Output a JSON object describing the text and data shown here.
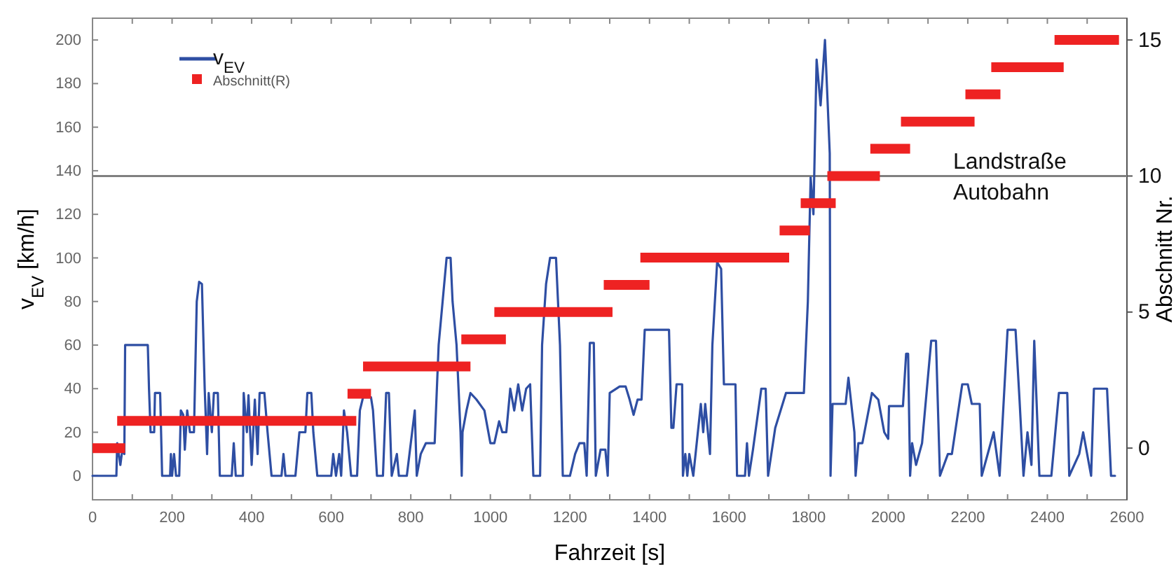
{
  "chart_data": {
    "type": "line",
    "xlabel": "Fahrzeit [s]",
    "ylabel": "v$_{EV}$ [km/h]",
    "y2label": "Abschnitt Nr.",
    "xlim": [
      0,
      2600
    ],
    "ylim": [
      -11,
      210
    ],
    "y2lim": [
      -1.9,
      15.8
    ],
    "xticks": [
      0,
      {
        "value": 100,
        "label": null
      },
      200,
      {
        "value": 300,
        "label": null
      },
      400,
      {
        "value": 500,
        "label": null
      },
      600,
      {
        "value": 700,
        "label": null
      },
      800,
      {
        "value": 900,
        "label": null
      },
      1000,
      {
        "value": 1100,
        "label": null
      },
      1200,
      {
        "value": 1300,
        "label": null
      },
      1400,
      {
        "value": 1500,
        "label": null
      },
      1600,
      {
        "value": 1700,
        "label": null
      },
      1800,
      {
        "value": 1900,
        "label": null
      },
      2000,
      {
        "value": 2100,
        "label": null
      },
      2200,
      {
        "value": 2300,
        "label": null
      },
      2400,
      {
        "value": 2500,
        "label": null
      },
      2600
    ],
    "yticks": [
      0,
      20,
      40,
      60,
      80,
      100,
      120,
      140,
      160,
      180,
      200
    ],
    "y2ticks": [
      0,
      5,
      10,
      15
    ],
    "legend": "top left",
    "grid": false,
    "ref_lines": [
      {
        "axis": "y2",
        "value": 10,
        "color": "#808080"
      }
    ],
    "annotations": [
      "Landstraße",
      "Autobahn"
    ],
    "series": [
      {
        "name": "v$_{EV}$",
        "color": "#2e4ea3",
        "axis": "y",
        "x": [
          0,
          60,
          62,
          70,
          75,
          80,
          82,
          139,
          142,
          146,
          155,
          157,
          170,
          175,
          195,
          197,
          200,
          205,
          210,
          218,
          222,
          228,
          232,
          238,
          245,
          255,
          262,
          268,
          275,
          282,
          288,
          292,
          300,
          305,
          315,
          320,
          350,
          355,
          360,
          378,
          380,
          388,
          392,
          400,
          408,
          415,
          420,
          432,
          440,
          450,
          475,
          480,
          485,
          510,
          520,
          535,
          540,
          550,
          555,
          565,
          600,
          605,
          612,
          620,
          625,
          632,
          640,
          650,
          665,
          672,
          680,
          700,
          705,
          715,
          730,
          738,
          745,
          752,
          765,
          770,
          790,
          810,
          815,
          825,
          838,
          860,
          870,
          880,
          890,
          900,
          905,
          915,
          925,
          928,
          930,
          940,
          950,
          965,
          985,
          1000,
          1010,
          1022,
          1030,
          1040,
          1050,
          1060,
          1070,
          1080,
          1090,
          1100,
          1108,
          1125,
          1130,
          1140,
          1150,
          1165,
          1175,
          1182,
          1200,
          1213,
          1224,
          1236,
          1242,
          1250,
          1260,
          1265,
          1277,
          1289,
          1295,
          1300,
          1325,
          1340,
          1350,
          1360,
          1370,
          1380,
          1388,
          1449,
          1455,
          1460,
          1468,
          1482,
          1484,
          1490,
          1495,
          1500,
          1510,
          1529,
          1535,
          1540,
          1552,
          1558,
          1570,
          1580,
          1587,
          1616,
          1620,
          1640,
          1645,
          1650,
          1660,
          1681,
          1692,
          1698,
          1716,
          1743,
          1788,
          1798,
          1805,
          1812,
          1820,
          1830,
          1841,
          1848,
          1853,
          1855,
          1860,
          1893,
          1900,
          1915,
          1918,
          1925,
          1935,
          1959,
          1975,
          1990,
          2000,
          2002,
          2037,
          2045,
          2050,
          2055,
          2060,
          2070,
          2085,
          2108,
          2120,
          2130,
          2150,
          2160,
          2186,
          2200,
          2210,
          2230,
          2235,
          2265,
          2280,
          2300,
          2320,
          2330,
          2340,
          2350,
          2360,
          2367,
          2380,
          2410,
          2429,
          2450,
          2455,
          2480,
          2490,
          2510,
          2517,
          2550,
          2560,
          2570
        ],
        "values": [
          0,
          0,
          15,
          5,
          12,
          10,
          60,
          60,
          40,
          20,
          20,
          38,
          38,
          0,
          0,
          10,
          0,
          10,
          0,
          0,
          30,
          28,
          12,
          30,
          20,
          20,
          80,
          89,
          88,
          40,
          10,
          38,
          20,
          38,
          38,
          0,
          0,
          15,
          0,
          0,
          38,
          20,
          37,
          5,
          35,
          10,
          38,
          38,
          20,
          0,
          0,
          10,
          0,
          0,
          20,
          20,
          38,
          38,
          20,
          0,
          0,
          10,
          0,
          10,
          0,
          30,
          20,
          0,
          0,
          30,
          36,
          36,
          30,
          0,
          0,
          38,
          38,
          0,
          10,
          0,
          0,
          30,
          0,
          10,
          15,
          15,
          60,
          80,
          100,
          100,
          80,
          60,
          20,
          0,
          20,
          30,
          38,
          35,
          30,
          15,
          15,
          25,
          20,
          20,
          40,
          30,
          42,
          30,
          40,
          42,
          0,
          0,
          60,
          88,
          100,
          100,
          60,
          0,
          0,
          10,
          15,
          15,
          0,
          61,
          61,
          0,
          12,
          12,
          0,
          38,
          41,
          41,
          35,
          28,
          35,
          35,
          67,
          67,
          22,
          22,
          42,
          42,
          0,
          10,
          0,
          10,
          0,
          33,
          20,
          33,
          10,
          60,
          98,
          95,
          42,
          42,
          0,
          0,
          15,
          0,
          12,
          40,
          40,
          0,
          22,
          38,
          38,
          80,
          137,
          120,
          191,
          170,
          200,
          170,
          148,
          0,
          33,
          33,
          45,
          20,
          0,
          15,
          15,
          38,
          35,
          20,
          17,
          32,
          32,
          56,
          56,
          0,
          15,
          5,
          15,
          62,
          62,
          0,
          10,
          10,
          42,
          42,
          33,
          33,
          0,
          20,
          0,
          67,
          67,
          35,
          0,
          20,
          5,
          62,
          0,
          0,
          38,
          38,
          0,
          10,
          20,
          0,
          40,
          40,
          0,
          0
        ]
      },
      {
        "name": "Abschnitt(R)",
        "color": "#ee2222",
        "axis": "y2",
        "x": [
          0,
          82
        ],
        "values": [
          0,
          0
        ]
      },
      {
        "color": "#ee2222",
        "axis": "y2",
        "x": [
          62,
          663
        ],
        "values": [
          1,
          1
        ]
      },
      {
        "color": "#ee2222",
        "axis": "y2",
        "x": [
          641,
          700
        ],
        "values": [
          2,
          2
        ]
      },
      {
        "color": "#ee2222",
        "axis": "y2",
        "x": [
          680,
          950
        ],
        "values": [
          3,
          3
        ]
      },
      {
        "color": "#ee2222",
        "axis": "y2",
        "x": [
          927,
          1039
        ],
        "values": [
          4,
          4
        ]
      },
      {
        "color": "#ee2222",
        "axis": "y2",
        "x": [
          1010,
          1307
        ],
        "values": [
          5,
          5
        ]
      },
      {
        "color": "#ee2222",
        "axis": "y2",
        "x": [
          1285,
          1400
        ],
        "values": [
          6,
          6
        ]
      },
      {
        "color": "#ee2222",
        "axis": "y2",
        "x": [
          1377,
          1751
        ],
        "values": [
          7,
          7
        ]
      },
      {
        "color": "#ee2222",
        "axis": "y2",
        "x": [
          1727,
          1803
        ],
        "values": [
          8,
          8
        ]
      },
      {
        "color": "#ee2222",
        "axis": "y2",
        "x": [
          1780,
          1868
        ],
        "values": [
          9,
          9
        ]
      },
      {
        "color": "#ee2222",
        "axis": "y2",
        "x": [
          1847,
          1979
        ],
        "values": [
          10,
          10
        ]
      },
      {
        "color": "#ee2222",
        "axis": "y2",
        "x": [
          1955,
          2055
        ],
        "values": [
          11,
          11
        ]
      },
      {
        "color": "#ee2222",
        "axis": "y2",
        "x": [
          2032,
          2217
        ],
        "values": [
          12,
          12
        ]
      },
      {
        "color": "#ee2222",
        "axis": "y2",
        "x": [
          2194,
          2282
        ],
        "values": [
          13,
          13
        ]
      },
      {
        "color": "#ee2222",
        "axis": "y2",
        "x": [
          2259,
          2441
        ],
        "values": [
          14,
          14
        ]
      },
      {
        "color": "#ee2222",
        "axis": "y2",
        "x": [
          2418,
          2580
        ],
        "values": [
          15,
          15
        ]
      }
    ]
  }
}
